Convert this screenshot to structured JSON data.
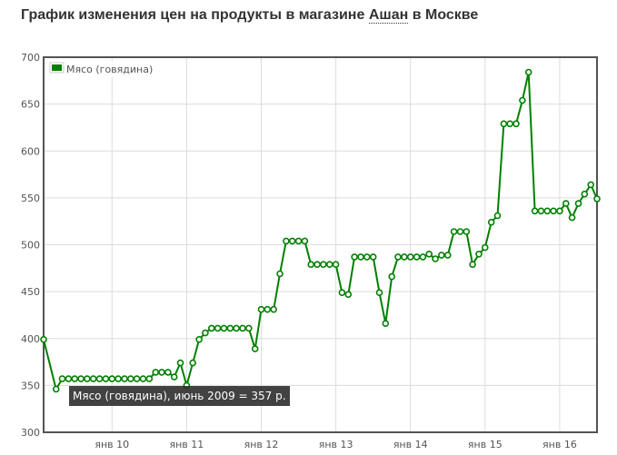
{
  "header": {
    "title_prefix": "График изменения цен на продукты в магазине ",
    "store": "Ашан",
    "title_suffix": " в Москве"
  },
  "tooltip": {
    "text": "Мясо (говядина), июнь 2009 = 357 р."
  },
  "chart_data": {
    "type": "line",
    "title": "График изменения цен на продукты в магазине Ашан в Москве",
    "xlabel": "",
    "ylabel": "",
    "x_start": "2009-02",
    "x_end": "2016-04",
    "ylim": [
      300,
      700
    ],
    "yticks": [
      300,
      350,
      400,
      450,
      500,
      550,
      600,
      650,
      700
    ],
    "xticks": [
      {
        "label": "янв 10",
        "month": "2010-01"
      },
      {
        "label": "янв 11",
        "month": "2011-01"
      },
      {
        "label": "янв 12",
        "month": "2012-01"
      },
      {
        "label": "янв 13",
        "month": "2013-01"
      },
      {
        "label": "янв 14",
        "month": "2014-01"
      },
      {
        "label": "янв 15",
        "month": "2015-01"
      },
      {
        "label": "янв 16",
        "month": "2016-01"
      }
    ],
    "grid": true,
    "legend": "top-left",
    "series": [
      {
        "name": "Мясо (говядина)",
        "color": "#008000",
        "points": [
          [
            "2009-02",
            399
          ],
          [
            "2009-04",
            346
          ],
          [
            "2009-05",
            357
          ],
          [
            "2009-06",
            357
          ],
          [
            "2009-07",
            357
          ],
          [
            "2009-08",
            357
          ],
          [
            "2009-09",
            357
          ],
          [
            "2009-10",
            357
          ],
          [
            "2009-11",
            357
          ],
          [
            "2009-12",
            357
          ],
          [
            "2010-01",
            357
          ],
          [
            "2010-02",
            357
          ],
          [
            "2010-03",
            357
          ],
          [
            "2010-04",
            357
          ],
          [
            "2010-05",
            357
          ],
          [
            "2010-06",
            357
          ],
          [
            "2010-07",
            357
          ],
          [
            "2010-08",
            364
          ],
          [
            "2010-09",
            364
          ],
          [
            "2010-10",
            364
          ],
          [
            "2010-11",
            359
          ],
          [
            "2010-12",
            374
          ],
          [
            "2011-01",
            350
          ],
          [
            "2011-02",
            374
          ],
          [
            "2011-03",
            399
          ],
          [
            "2011-04",
            406
          ],
          [
            "2011-05",
            411
          ],
          [
            "2011-06",
            411
          ],
          [
            "2011-07",
            411
          ],
          [
            "2011-08",
            411
          ],
          [
            "2011-09",
            411
          ],
          [
            "2011-10",
            411
          ],
          [
            "2011-11",
            411
          ],
          [
            "2011-12",
            389
          ],
          [
            "2012-01",
            431
          ],
          [
            "2012-02",
            431
          ],
          [
            "2012-03",
            431
          ],
          [
            "2012-04",
            469
          ],
          [
            "2012-05",
            504
          ],
          [
            "2012-06",
            504
          ],
          [
            "2012-07",
            504
          ],
          [
            "2012-08",
            504
          ],
          [
            "2012-09",
            479
          ],
          [
            "2012-10",
            479
          ],
          [
            "2012-11",
            479
          ],
          [
            "2012-12",
            479
          ],
          [
            "2013-01",
            479
          ],
          [
            "2013-02",
            449
          ],
          [
            "2013-03",
            447
          ],
          [
            "2013-04",
            487
          ],
          [
            "2013-05",
            487
          ],
          [
            "2013-06",
            487
          ],
          [
            "2013-07",
            487
          ],
          [
            "2013-08",
            449
          ],
          [
            "2013-09",
            416
          ],
          [
            "2013-10",
            466
          ],
          [
            "2013-11",
            487
          ],
          [
            "2013-12",
            487
          ],
          [
            "2014-01",
            487
          ],
          [
            "2014-02",
            487
          ],
          [
            "2014-03",
            487
          ],
          [
            "2014-04",
            490
          ],
          [
            "2014-05",
            485
          ],
          [
            "2014-06",
            489
          ],
          [
            "2014-07",
            489
          ],
          [
            "2014-08",
            514
          ],
          [
            "2014-09",
            514
          ],
          [
            "2014-10",
            514
          ],
          [
            "2014-11",
            479
          ],
          [
            "2014-12",
            490
          ],
          [
            "2015-01",
            497
          ],
          [
            "2015-02",
            524
          ],
          [
            "2015-03",
            531
          ],
          [
            "2015-04",
            629
          ],
          [
            "2015-05",
            629
          ],
          [
            "2015-06",
            629
          ],
          [
            "2015-07",
            654
          ],
          [
            "2015-08",
            684
          ],
          [
            "2015-09",
            536
          ],
          [
            "2015-10",
            536
          ],
          [
            "2015-11",
            536
          ],
          [
            "2015-12",
            536
          ],
          [
            "2016-01",
            536
          ],
          [
            "2016-02",
            544
          ],
          [
            "2016-03",
            529
          ],
          [
            "2016-04",
            544
          ],
          [
            "2016-05",
            554
          ],
          [
            "2016-06",
            564
          ],
          [
            "2016-07",
            549
          ]
        ]
      }
    ]
  }
}
